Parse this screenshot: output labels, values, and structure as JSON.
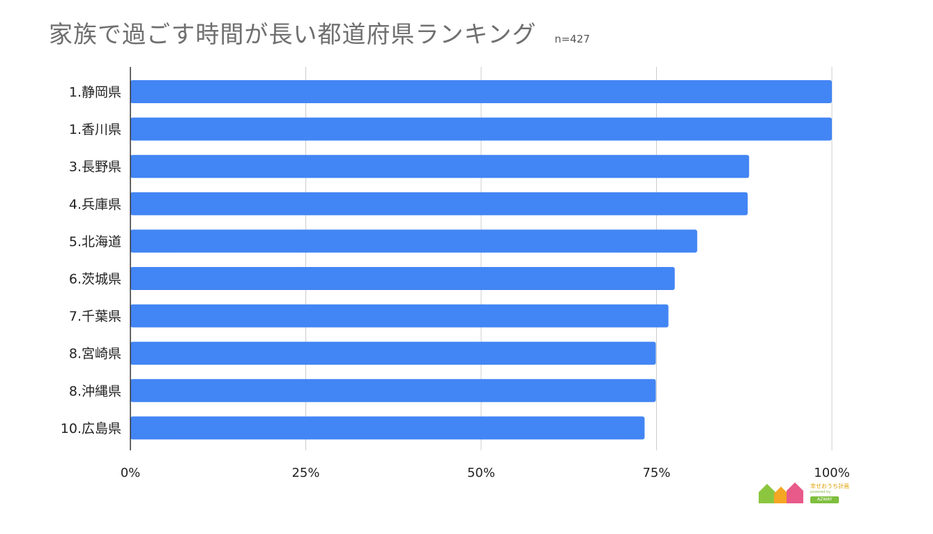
{
  "chart_data": {
    "type": "bar",
    "orientation": "horizontal",
    "title": "家族で過ごす時間が長い都道府県ランキング",
    "subtitle": "n=427",
    "categories": [
      "1.静岡県",
      "1.香川県",
      "3.長野県",
      "4.兵庫県",
      "5.北海道",
      "6.茨城県",
      "7.千葉県",
      "8.宮崎県",
      "8.沖縄県",
      "10.広島県"
    ],
    "values": [
      100,
      100,
      88.2,
      88,
      80.8,
      77.6,
      76.7,
      74.9,
      74.9,
      73.3
    ],
    "unit": "%",
    "xlim": [
      0,
      100
    ],
    "ticks": [
      0,
      25,
      50,
      75,
      100
    ],
    "tick_labels": [
      "0%",
      "25%",
      "50%",
      "75%",
      "100%"
    ],
    "grid": true,
    "legend": "none",
    "bar_color": "#4285f4"
  },
  "logo": {
    "main": "幸せおうち計画",
    "sub": "powered by",
    "badge": "AZWAY",
    "colors": [
      "#8cc63f",
      "#f5a623",
      "#e85a8a"
    ]
  }
}
